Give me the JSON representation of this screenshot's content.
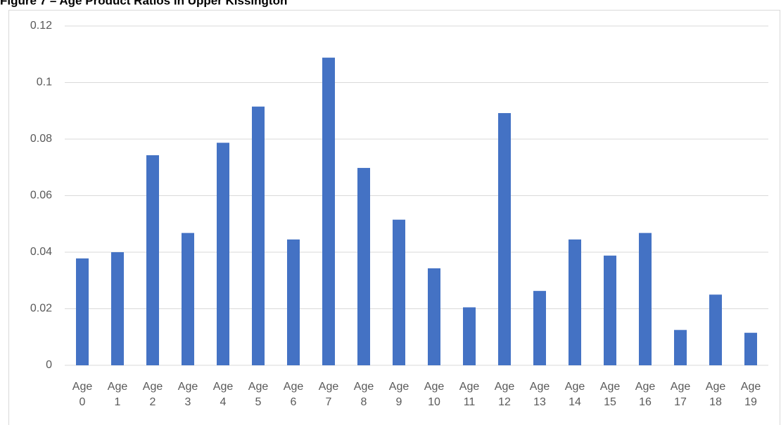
{
  "chart_data": {
    "type": "bar",
    "title": "Figure 7 – Age Product Ratios in Upper Kissington",
    "categories": [
      "Age 0",
      "Age 1",
      "Age 2",
      "Age 3",
      "Age 4",
      "Age 5",
      "Age 6",
      "Age 7",
      "Age 8",
      "Age 9",
      "Age 10",
      "Age 11",
      "Age 12",
      "Age 13",
      "Age 14",
      "Age 15",
      "Age 16",
      "Age 17",
      "Age 18",
      "Age 19"
    ],
    "values": [
      0.0378,
      0.04,
      0.0743,
      0.0468,
      0.0787,
      0.0915,
      0.0445,
      0.1088,
      0.0698,
      0.0515,
      0.0343,
      0.0205,
      0.0892,
      0.0263,
      0.0445,
      0.0388,
      0.0468,
      0.0125,
      0.025,
      0.0115
    ],
    "color": "#4472c4",
    "ylim": [
      0,
      0.12
    ],
    "yticks": [
      0,
      0.02,
      0.04,
      0.06,
      0.08,
      0.1,
      0.12
    ],
    "grid": true
  }
}
